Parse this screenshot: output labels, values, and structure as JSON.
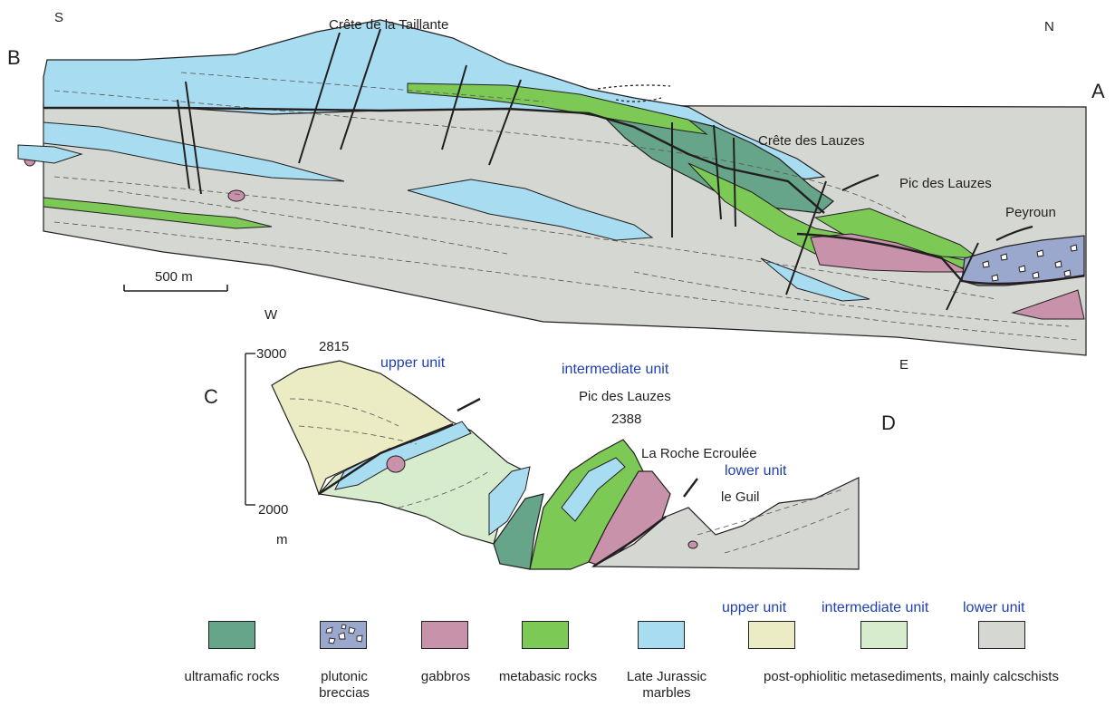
{
  "colors": {
    "ultramafic": "#67a58a",
    "plutonic": "#9aa8cd",
    "gabbros": "#c792aa",
    "metabasic": "#7cc956",
    "marbles": "#a8ddf1",
    "upper_unit": "#ececc4",
    "intermediate_unit": "#d7ebcd",
    "lower_unit": "#d5d8d2",
    "lines": "#231f20",
    "unit_labels": "#1f3fb0"
  },
  "section_upper": {
    "corner_s": "S",
    "corner_n": "N",
    "letter_b": "B",
    "letter_a": "A",
    "labels": {
      "crete_taillante": "Crête de la Taillante",
      "crete_lauzes": "Crête des Lauzes",
      "pic_lauzes": "Pic des Lauzes",
      "peyroun": "Peyroun"
    },
    "scale_bar": "500 m",
    "corner_w": "W",
    "corner_e": "E"
  },
  "section_lower": {
    "letter_c": "C",
    "letter_d": "D",
    "axis_top": "3000",
    "axis_bottom": "2000",
    "axis_unit": "m",
    "peak_left": "2815",
    "pic_lauzes": "Pic des Lauzes",
    "pic_altitude": "2388",
    "roche": "La Roche Ecroulée",
    "guil": "le Guil",
    "unit_upper": "upper unit",
    "unit_intermediate": "intermediate unit",
    "unit_lower": "lower unit"
  },
  "legend": {
    "header_upper": "upper unit",
    "header_intermediate": "intermediate unit",
    "header_lower": "lower unit",
    "items": [
      {
        "label": "ultramafic rocks",
        "icon": "ultramafic-swatch"
      },
      {
        "label": "plutonic\nbreccias",
        "icon": "plutonic-breccia-swatch"
      },
      {
        "label": "gabbros",
        "icon": "gabbro-swatch"
      },
      {
        "label": "metabasic rocks",
        "icon": "metabasic-swatch"
      },
      {
        "label": "Late Jurassic\nmarbles",
        "icon": "marble-swatch"
      }
    ],
    "sediments_label": "post-ophiolitic metasediments, mainly calcschists"
  }
}
